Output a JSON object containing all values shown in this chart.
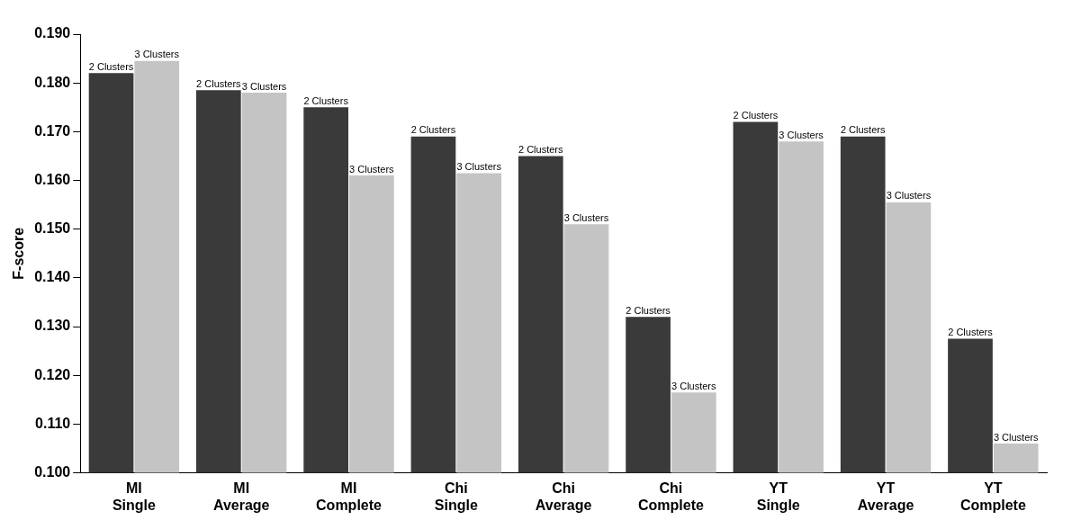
{
  "chart_data": {
    "type": "bar",
    "ylabel": "F-score",
    "categories": [
      "MI Single",
      "MI Average",
      "MI Complete",
      "Chi Single",
      "Chi Average",
      "Chi Complete",
      "YT Single",
      "YT Average",
      "YT Complete"
    ],
    "series": [
      {
        "name": "2 Clusters",
        "color": "#3a3a3a",
        "values": [
          0.182,
          0.1785,
          0.175,
          0.169,
          0.165,
          0.132,
          0.172,
          0.169,
          0.1275
        ]
      },
      {
        "name": "3 Clusters",
        "color": "#c4c4c4",
        "values": [
          0.1845,
          0.178,
          0.161,
          0.1615,
          0.151,
          0.1165,
          0.168,
          0.1555,
          0.106
        ]
      }
    ],
    "ylim": [
      0.1,
      0.19
    ],
    "yticks": [
      {
        "value": 0.1,
        "label": "0.100"
      },
      {
        "value": 0.11,
        "label": "0.110"
      },
      {
        "value": 0.12,
        "label": "0.120"
      },
      {
        "value": 0.13,
        "label": "0.130"
      },
      {
        "value": 0.14,
        "label": "0.140"
      },
      {
        "value": 0.15,
        "label": "0.150"
      },
      {
        "value": 0.16,
        "label": "0.160"
      },
      {
        "value": 0.17,
        "label": "0.170"
      },
      {
        "value": 0.18,
        "label": "0.180"
      },
      {
        "value": 0.19,
        "label": "0.190"
      }
    ],
    "grid": false,
    "legend": false
  }
}
